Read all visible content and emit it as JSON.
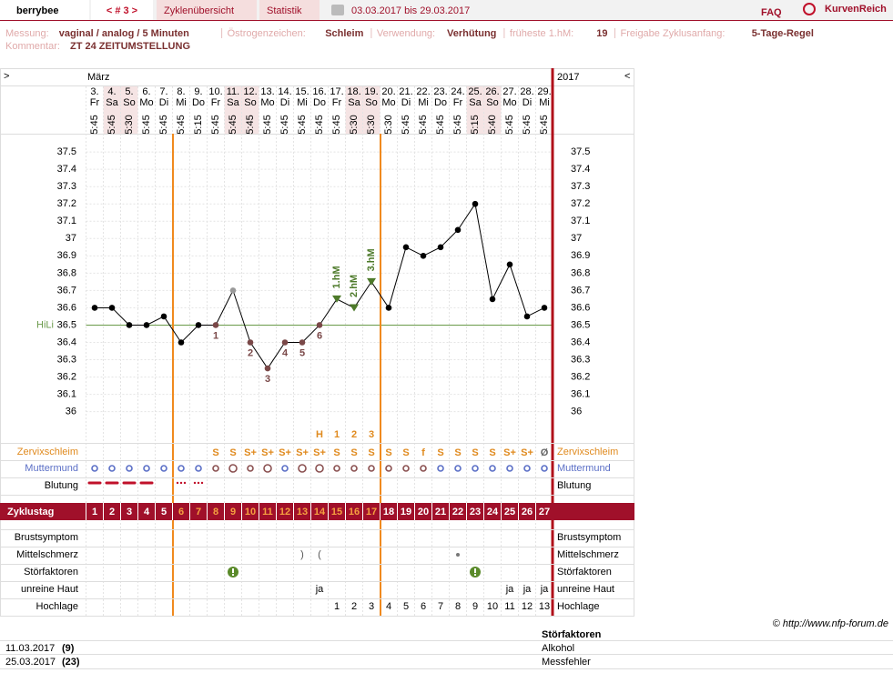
{
  "header": {
    "brand": "berrybee",
    "cycle_nav": "< # 3 >",
    "tabs": [
      "Zyklenübersicht",
      "Statistik"
    ],
    "date_range": "03.03.2017 bis 29.03.2017",
    "faq": "FAQ",
    "logo": "KurvenReich"
  },
  "info": {
    "items": [
      {
        "label": "Messung:",
        "value": "vaginal / analog / 5 Minuten"
      },
      {
        "label": "Östrogenzeichen:",
        "value": "Schleim"
      },
      {
        "label": "Verwendung:",
        "value": "Verhütung"
      },
      {
        "label": "früheste 1.hM:",
        "value": "19"
      },
      {
        "label": "Freigabe Zyklusanfang:",
        "value": "5-Tage-Regel"
      }
    ],
    "comment_label": "Kommentar:",
    "comment": "ZT 24 ZEITUMSTELLUNG"
  },
  "chart_data": {
    "type": "line",
    "nav_left": ">",
    "nav_right": "<",
    "month": "März",
    "year": "2017",
    "days": [
      "3.",
      "4.",
      "5.",
      "6.",
      "7.",
      "8.",
      "9.",
      "10.",
      "11.",
      "12.",
      "13.",
      "14.",
      "15.",
      "16.",
      "17.",
      "18.",
      "19.",
      "20.",
      "21.",
      "22.",
      "23.",
      "24.",
      "25.",
      "26.",
      "27.",
      "28.",
      "29."
    ],
    "weekdays": [
      "Fr",
      "Sa",
      "So",
      "Mo",
      "Di",
      "Mi",
      "Do",
      "Fr",
      "Sa",
      "So",
      "Mo",
      "Di",
      "Mi",
      "Do",
      "Fr",
      "Sa",
      "So",
      "Mo",
      "Di",
      "Mi",
      "Do",
      "Fr",
      "Sa",
      "So",
      "Mo",
      "Di",
      "Mi"
    ],
    "times": [
      "5:45",
      "5:45",
      "5:30",
      "5:45",
      "5:45",
      "5:45",
      "5:15",
      "5:45",
      "5:45",
      "5:45",
      "5:45",
      "5:45",
      "5:45",
      "5:45",
      "5:45",
      "5:30",
      "5:30",
      "5:30",
      "5:45",
      "5:45",
      "5:45",
      "5:45",
      "5:15",
      "5:40",
      "5:45",
      "5:45",
      "5:45"
    ],
    "values": [
      36.6,
      36.6,
      36.5,
      36.5,
      36.55,
      36.4,
      36.5,
      36.5,
      36.7,
      36.4,
      36.25,
      36.4,
      36.4,
      36.5,
      36.65,
      36.6,
      36.75,
      36.6,
      36.95,
      36.9,
      36.95,
      37.05,
      37.2,
      36.65,
      36.85,
      36.55,
      36.6
    ],
    "point_colors": [
      "#000",
      "#000",
      "#000",
      "#000",
      "#000",
      "#000",
      "#000",
      "#7a4848",
      "#999",
      "#7a4848",
      "#7a4848",
      "#7a4848",
      "#7a4848",
      "#7a4848",
      "#4d7a2a",
      "#4d7a2a",
      "#4d7a2a",
      "#000",
      "#000",
      "#000",
      "#000",
      "#000",
      "#000",
      "#000",
      "#000",
      "#000",
      "#000"
    ],
    "count_labels": [
      null,
      null,
      null,
      null,
      null,
      null,
      null,
      "1",
      null,
      "2",
      "3",
      "4",
      "5",
      "6",
      null,
      null,
      null,
      null,
      null,
      null,
      null,
      null,
      null,
      null,
      null,
      null,
      null
    ],
    "hm_labels": [
      null,
      null,
      null,
      null,
      null,
      null,
      null,
      null,
      null,
      null,
      null,
      null,
      null,
      null,
      "1.hM",
      "2.hM",
      "3.hM",
      null,
      null,
      null,
      null,
      null,
      null,
      null,
      null,
      null,
      null
    ],
    "ylim": [
      35.83,
      37.59
    ],
    "yticks": [
      36,
      36.1,
      36.2,
      36.3,
      36.4,
      36.5,
      36.6,
      36.7,
      36.8,
      36.9,
      37,
      37.1,
      37.2,
      37.3,
      37.4,
      37.5
    ],
    "hili": {
      "label": "HiLi",
      "value": 36.5
    },
    "peak_marks": [
      null,
      null,
      null,
      null,
      null,
      null,
      null,
      null,
      null,
      null,
      null,
      null,
      null,
      "H",
      "1",
      "2",
      "3",
      null,
      null,
      null,
      null,
      null,
      null,
      null,
      null,
      null,
      null
    ],
    "cervix_label": "Zervixschleim",
    "cervix": [
      null,
      null,
      null,
      null,
      null,
      null,
      null,
      "S",
      "S",
      "S+",
      "S+",
      "S+",
      "S+",
      "S+",
      "S",
      "S",
      "S",
      "S",
      "S",
      "f",
      "S",
      "S",
      "S",
      "S",
      "S+",
      "S+",
      "Ø"
    ],
    "cervix_color": "#e08a1e",
    "mouth_label": "Muttermund",
    "bleeding_label": "Blutung",
    "cycle_day_label": "Zyklustag",
    "cycle_days": [
      1,
      2,
      3,
      4,
      5,
      6,
      7,
      8,
      9,
      10,
      11,
      12,
      13,
      14,
      15,
      16,
      17,
      18,
      19,
      20,
      21,
      22,
      23,
      24,
      25,
      26,
      27
    ],
    "phase_lines": [
      5,
      17
    ],
    "phase_color": "#f08a1e",
    "breast_label": "Brustsymptom",
    "midpain_label": "Mittelschmerz",
    "midpain": [
      null,
      null,
      null,
      null,
      null,
      null,
      null,
      null,
      null,
      null,
      null,
      null,
      ")",
      "(",
      null,
      null,
      null,
      null,
      null,
      null,
      null,
      null,
      null,
      null,
      null,
      null,
      null
    ],
    "disturb_label": "Störfaktoren",
    "skin_label": "unreine Haut",
    "skin": [
      null,
      null,
      null,
      null,
      null,
      null,
      null,
      null,
      null,
      null,
      null,
      null,
      null,
      "ja",
      null,
      null,
      null,
      null,
      null,
      null,
      null,
      null,
      null,
      null,
      "ja",
      "ja",
      "ja"
    ],
    "high_label": "Hochlage",
    "high": [
      null,
      null,
      null,
      null,
      null,
      null,
      null,
      null,
      null,
      null,
      null,
      null,
      null,
      null,
      1,
      2,
      3,
      4,
      5,
      6,
      7,
      8,
      9,
      10,
      11,
      12,
      13
    ]
  },
  "copyright": "© http://www.nfp-forum.de",
  "disturbances": {
    "title": "Störfaktoren",
    "rows": [
      [
        "11.03.2017",
        "(9)",
        "Alkohol"
      ],
      [
        "25.03.2017",
        "(23)",
        "Messfehler"
      ]
    ]
  }
}
